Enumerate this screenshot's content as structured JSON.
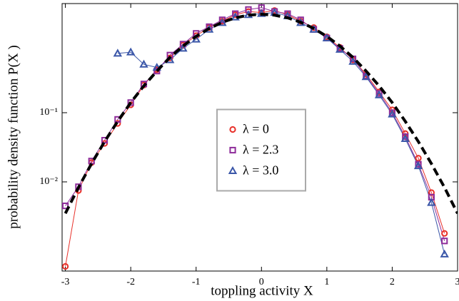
{
  "chart_data": {
    "type": "line",
    "xlabel": "toppling activity X",
    "ylabel": "probability density function P(X )",
    "xlim": [
      -3.05,
      3.0
    ],
    "ylim": [
      0.000514,
      3.78
    ],
    "ylog": true,
    "xticks": [
      -3,
      -2,
      -1,
      0,
      1,
      2,
      3
    ],
    "yticks": [
      {
        "value": 0.1,
        "label": "10⁻¹"
      },
      {
        "value": 0.01,
        "label": "10⁻²"
      }
    ],
    "legend": "center",
    "series": [
      {
        "name": "λ = 0",
        "color": "#e8312a",
        "marker": "circle",
        "x": [
          -3.0,
          -2.8,
          -2.6,
          -2.4,
          -2.2,
          -2.0,
          -1.8,
          -1.6,
          -1.4,
          -1.2,
          -1.0,
          -0.8,
          -0.6,
          -0.4,
          -0.2,
          0,
          0.2,
          0.4,
          0.6,
          0.8,
          1.0,
          1.2,
          1.4,
          1.6,
          1.8,
          2.0,
          2.2,
          2.4,
          2.6,
          2.8
        ],
        "values": [
          0.0006,
          0.0075,
          0.019,
          0.036,
          0.07,
          0.13,
          0.25,
          0.42,
          0.62,
          0.95,
          1.3,
          1.7,
          2.1,
          2.6,
          2.9,
          2.8,
          3.0,
          2.6,
          2.1,
          1.7,
          1.25,
          0.88,
          0.58,
          0.36,
          0.2,
          0.11,
          0.05,
          0.022,
          0.007,
          0.0018
        ]
      },
      {
        "name": "λ = 2.3",
        "color": "#8e2c9a",
        "marker": "square",
        "x": [
          -3.0,
          -2.8,
          -2.6,
          -2.4,
          -2.2,
          -2.0,
          -1.8,
          -1.6,
          -1.4,
          -1.2,
          -1.0,
          -0.8,
          -0.6,
          -0.4,
          -0.2,
          0,
          0.2,
          0.4,
          0.6,
          0.8,
          1.0,
          1.2,
          1.4,
          1.6,
          1.8,
          2.0,
          2.2,
          2.4,
          2.6,
          2.8
        ],
        "values": [
          0.0045,
          0.0085,
          0.02,
          0.04,
          0.08,
          0.14,
          0.26,
          0.4,
          0.68,
          0.98,
          1.4,
          1.75,
          2.2,
          2.7,
          3.1,
          3.3,
          2.9,
          2.7,
          2.2,
          1.6,
          1.2,
          0.85,
          0.6,
          0.34,
          0.19,
          0.1,
          0.045,
          0.018,
          0.006,
          0.0014
        ]
      },
      {
        "name": "λ = 3.0",
        "color": "#3a56a8",
        "marker": "triangle",
        "x": [
          -2.2,
          -2.0,
          -1.8,
          -1.6,
          -1.4,
          -1.2,
          -1.0,
          -0.8,
          -0.6,
          -0.4,
          -0.2,
          0,
          0.2,
          0.4,
          0.6,
          0.8,
          1.0,
          1.2,
          1.4,
          1.6,
          1.8,
          2.0,
          2.2,
          2.4,
          2.6,
          2.8
        ],
        "values": [
          0.72,
          0.75,
          0.5,
          0.45,
          0.58,
          0.85,
          1.15,
          1.6,
          2.0,
          2.4,
          2.6,
          2.7,
          2.8,
          2.5,
          2.0,
          1.6,
          1.2,
          0.82,
          0.55,
          0.33,
          0.18,
          0.095,
          0.042,
          0.017,
          0.005,
          0.0009
        ]
      }
    ],
    "fit": {
      "color": "#000000",
      "x": [
        -3.0,
        -2.8,
        -2.6,
        -2.4,
        -2.2,
        -2.0,
        -1.8,
        -1.6,
        -1.4,
        -1.2,
        -1.0,
        -0.8,
        -0.6,
        -0.4,
        -0.2,
        0,
        0.2,
        0.4,
        0.6,
        0.8,
        1.0,
        1.2,
        1.4,
        1.6,
        1.8,
        2.0,
        2.2,
        2.4,
        2.6,
        2.8,
        3.0
      ],
      "values": [
        0.0035,
        0.0083,
        0.0183,
        0.0382,
        0.075,
        0.14,
        0.244,
        0.4,
        0.63,
        0.92,
        1.27,
        1.65,
        2.03,
        2.35,
        2.57,
        2.65,
        2.57,
        2.35,
        2.03,
        1.65,
        1.27,
        0.92,
        0.63,
        0.4,
        0.244,
        0.14,
        0.075,
        0.0382,
        0.0183,
        0.0083,
        0.0035
      ]
    }
  }
}
